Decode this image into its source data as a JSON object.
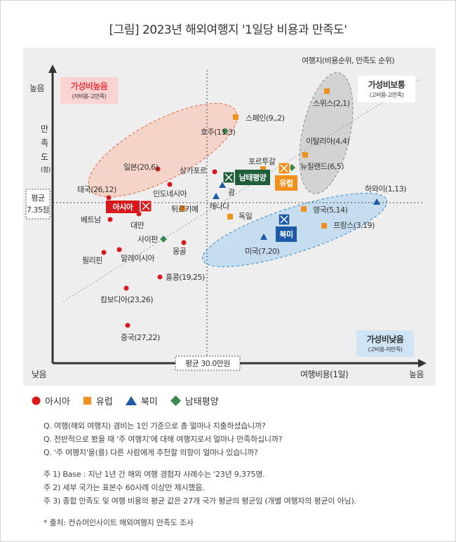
{
  "title": "[그림] 2023년 해외여행지 '1일당 비용과 만족도'",
  "chart_data": {
    "type": "scatter",
    "title": "[그림] 2023년 해외여행지 '1일당 비용과 만족도'",
    "xlabel": "여행비용(1일)",
    "ylabel": "만족도(점)",
    "x_low": "낮음",
    "x_high": "높음",
    "y_low": "낮음",
    "y_high": "높음",
    "note_top_right": "여행지(비용순위, 만족도 순위)",
    "x_avg_label": "평균 30.0만원",
    "y_avg_label_1": "평균",
    "y_avg_label_2": "7.35점",
    "quadrants": [
      {
        "title": "가성비높음",
        "subtitle": "(저비용-고만족)",
        "color": "#e8383d"
      },
      {
        "title": "가성비보통",
        "subtitle": "(고비용-고만족)",
        "color": "#333333"
      },
      {
        "title": "가성비낮음",
        "subtitle": "(고비용-저만족)",
        "color": "#333333"
      }
    ],
    "regions": [
      {
        "name": "아시아",
        "color": "#d7191c",
        "marker": "circle"
      },
      {
        "name": "유럽",
        "color": "#f0901e",
        "marker": "square"
      },
      {
        "name": "북미",
        "color": "#1a5aa6",
        "marker": "triangle"
      },
      {
        "name": "남태평양",
        "color": "#3a8a4e",
        "marker": "diamond"
      }
    ],
    "region_badges": [
      {
        "name": "아시아",
        "color": "#d7191c",
        "icon": "x-box-icon"
      },
      {
        "name": "유럽",
        "color": "#f0901e",
        "icon": "x-box-icon"
      },
      {
        "name": "북미",
        "color": "#1a5aa6",
        "icon": "x-box-icon"
      },
      {
        "name": "남태평양",
        "color": "#1e5e38",
        "icon": "x-box-icon"
      }
    ],
    "points": [
      {
        "label": "스위스(2,1)",
        "region": "유럽"
      },
      {
        "label": "스페인(9,,2)",
        "region": "유럽"
      },
      {
        "label": "호주(11,3)",
        "region": "남태평양"
      },
      {
        "label": "이탈리아(4,4)",
        "region": "유럽"
      },
      {
        "label": "뉴질랜드(6,5)",
        "region": "남태평양"
      },
      {
        "label": "일본(20,6)",
        "region": "아시아"
      },
      {
        "label": "포르투갈",
        "region": "유럽"
      },
      {
        "label": "상가포르",
        "region": "아시아"
      },
      {
        "label": "인도네시아",
        "region": "아시아"
      },
      {
        "label": "괌",
        "region": "북미"
      },
      {
        "label": "태국(26,12)",
        "region": "아시아"
      },
      {
        "label": "하와이(1,13)",
        "region": "북미"
      },
      {
        "label": "튀르키예",
        "region": "유럽"
      },
      {
        "label": "캐나다",
        "region": "북미"
      },
      {
        "label": "영국(5,14)",
        "region": "유럽"
      },
      {
        "label": "베트남",
        "region": "아시아"
      },
      {
        "label": "독일",
        "region": "유럽"
      },
      {
        "label": "대만",
        "region": "아시아"
      },
      {
        "label": "프랑스(3,19)",
        "region": "유럽"
      },
      {
        "label": "사이판",
        "region": "남태평양"
      },
      {
        "label": "몽골",
        "region": "아시아"
      },
      {
        "label": "미국(7,20)",
        "region": "북미"
      },
      {
        "label": "필리핀",
        "region": "아시아"
      },
      {
        "label": "말레이시아",
        "region": "아시아"
      },
      {
        "label": "홍콩(19,25)",
        "region": "아시아"
      },
      {
        "label": "캄보디아(23,26)",
        "region": "아시아"
      },
      {
        "label": "중국(27,22)",
        "region": "아시아"
      }
    ]
  },
  "notes": [
    "Q. 여행(해외 여행지) 경비는 1인 기준으로 총 얼마나 지출하셨습니까?",
    "Q. 전반적으로 봤을 때 '주 여행지'에 대해 여행지로서 얼마나 만족하십니까?",
    "Q. '주 여행지'을(를) 다른 사람에게 추천할 의향이 얼마나 있습니까?",
    "주 1) Base : 지난 1년 간 해외 여행 경험자 사례수는 '23년 9,375명.",
    "주 2) 세부 국가는 표본수 60사례 이상만 제시했음.",
    "주 3) 종합 만족도 및 여행 비용의 평균 값은 27개 국가 평균의 평균임 (개별 여행자의 평균이 아님).",
    "* 출처: 컨슈머인사이트 해외여행지 만족도 조사"
  ]
}
